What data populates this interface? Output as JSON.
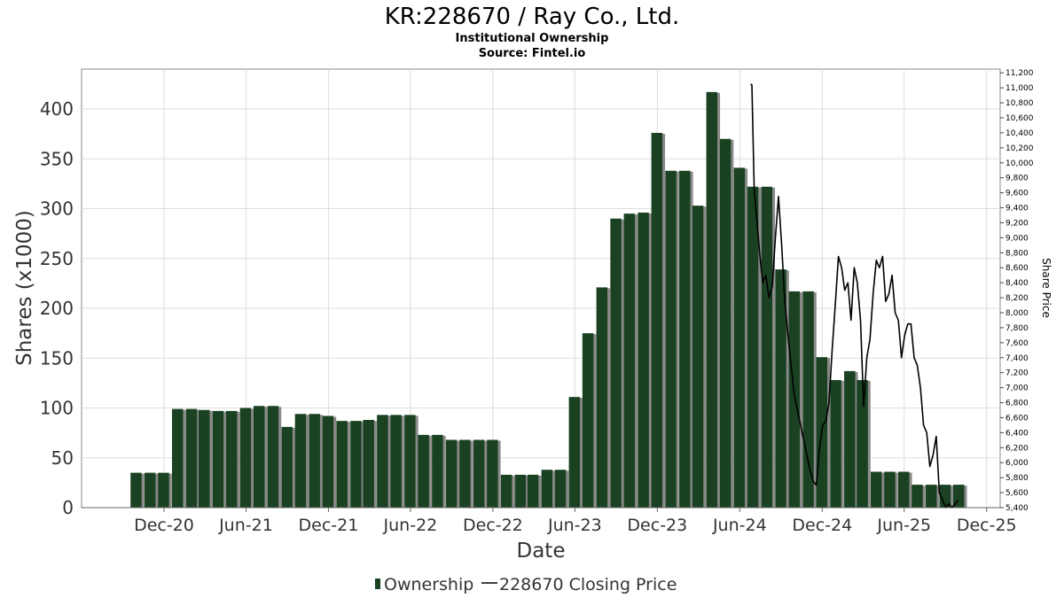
{
  "chart_data": {
    "type": "bar",
    "title": "KR:228670 / Ray Co., Ltd.",
    "subtitle": "Institutional Ownership",
    "source": "Source: Fintel.io",
    "xlabel": "Date",
    "ylabel": "Shares (x1000)",
    "y2label": "Share Price",
    "ylim": [
      0,
      440
    ],
    "y2lim": [
      5400,
      11250
    ],
    "yticks": [
      0,
      50,
      100,
      150,
      200,
      250,
      300,
      350,
      400
    ],
    "y2ticks": [
      5400,
      5600,
      5800,
      6000,
      6200,
      6400,
      6600,
      6800,
      7000,
      7200,
      7400,
      7600,
      7800,
      8000,
      8200,
      8400,
      8600,
      8800,
      9000,
      9200,
      9400,
      9600,
      9800,
      10000,
      10200,
      10400,
      10600,
      10800,
      11000,
      11200
    ],
    "y2tick_labels": [
      "5,400",
      "5,600",
      "5,800",
      "6,000",
      "6,200",
      "6,400",
      "6,600",
      "6,800",
      "7,000",
      "7,200",
      "7,400",
      "7,600",
      "7,800",
      "8,000",
      "8,200",
      "8,400",
      "8,600",
      "8,800",
      "9,000",
      "9,200",
      "9,400",
      "9,600",
      "9,800",
      "10,000",
      "10,200",
      "10,400",
      "10,600",
      "10,800",
      "11,000",
      "11,200"
    ],
    "xlim": [
      "2020-06-01",
      "2025-12-31"
    ],
    "xticks": [
      {
        "label": "Dec-20",
        "date": "2020-12-01"
      },
      {
        "label": "Jun-21",
        "date": "2021-06-01"
      },
      {
        "label": "Dec-21",
        "date": "2021-12-01"
      },
      {
        "label": "Jun-22",
        "date": "2022-06-01"
      },
      {
        "label": "Dec-22",
        "date": "2022-12-01"
      },
      {
        "label": "Jun-23",
        "date": "2023-06-01"
      },
      {
        "label": "Dec-23",
        "date": "2023-12-01"
      },
      {
        "label": "Jun-24",
        "date": "2024-06-01"
      },
      {
        "label": "Dec-24",
        "date": "2024-12-01"
      },
      {
        "label": "Jun-25",
        "date": "2025-06-01"
      },
      {
        "label": "Dec-25",
        "date": "2025-12-01"
      }
    ],
    "grid": true,
    "legend_position": "bottom",
    "series": [
      {
        "name": "Ownership",
        "type": "bar",
        "color": "#1a4222",
        "shadow_color": "#8a8a8a",
        "x": [
          "2020-09-30",
          "2020-10-31",
          "2020-11-30",
          "2020-12-31",
          "2021-01-31",
          "2021-02-28",
          "2021-03-31",
          "2021-04-30",
          "2021-05-31",
          "2021-06-30",
          "2021-07-31",
          "2021-08-31",
          "2021-09-30",
          "2021-10-31",
          "2021-11-30",
          "2021-12-31",
          "2022-01-31",
          "2022-02-28",
          "2022-03-31",
          "2022-04-30",
          "2022-05-31",
          "2022-06-30",
          "2022-07-31",
          "2022-08-31",
          "2022-09-30",
          "2022-10-31",
          "2022-11-30",
          "2022-12-31",
          "2023-01-31",
          "2023-02-28",
          "2023-03-31",
          "2023-04-30",
          "2023-05-31",
          "2023-06-30",
          "2023-07-31",
          "2023-08-31",
          "2023-09-30",
          "2023-10-31",
          "2023-11-30",
          "2023-12-31",
          "2024-01-31",
          "2024-02-29",
          "2024-03-31",
          "2024-04-30",
          "2024-05-31",
          "2024-06-30",
          "2024-07-31",
          "2024-08-31",
          "2024-09-30",
          "2024-10-31",
          "2024-11-30",
          "2024-12-31",
          "2025-01-31",
          "2025-02-28",
          "2025-03-31",
          "2025-04-30",
          "2025-05-31",
          "2025-06-30",
          "2025-07-31",
          "2025-08-31",
          "2025-09-30"
        ],
        "values": [
          35,
          35,
          35,
          99,
          99,
          98,
          97,
          97,
          100,
          102,
          102,
          81,
          94,
          94,
          92,
          87,
          87,
          88,
          93,
          93,
          93,
          73,
          73,
          68,
          68,
          68,
          68,
          33,
          33,
          33,
          38,
          38,
          111,
          175,
          221,
          290,
          295,
          296,
          376,
          338,
          338,
          303,
          417,
          370,
          341,
          322,
          322,
          239,
          217,
          217,
          151,
          128,
          137,
          128,
          36,
          36,
          36,
          23,
          23,
          23,
          23
        ]
      },
      {
        "name": "228670 Closing Price",
        "type": "line",
        "color": "#000000",
        "x": [
          "2024-06-25",
          "2024-06-28",
          "2024-07-03",
          "2024-07-08",
          "2024-07-15",
          "2024-07-22",
          "2024-07-29",
          "2024-08-05",
          "2024-08-12",
          "2024-08-19",
          "2024-08-26",
          "2024-09-02",
          "2024-09-09",
          "2024-09-16",
          "2024-09-23",
          "2024-09-30",
          "2024-10-07",
          "2024-10-14",
          "2024-10-21",
          "2024-10-28",
          "2024-11-04",
          "2024-11-11",
          "2024-11-18",
          "2024-11-25",
          "2024-12-02",
          "2024-12-09",
          "2024-12-16",
          "2024-12-23",
          "2024-12-30",
          "2025-01-06",
          "2025-01-13",
          "2025-01-20",
          "2025-01-27",
          "2025-02-03",
          "2025-02-10",
          "2025-02-17",
          "2025-02-24",
          "2025-03-03",
          "2025-03-10",
          "2025-03-17",
          "2025-03-24",
          "2025-03-31",
          "2025-04-07",
          "2025-04-14",
          "2025-04-21",
          "2025-04-28",
          "2025-05-05",
          "2025-05-12",
          "2025-05-19",
          "2025-05-26",
          "2025-06-02",
          "2025-06-09",
          "2025-06-16",
          "2025-06-23",
          "2025-06-30",
          "2025-07-07",
          "2025-07-14",
          "2025-07-21",
          "2025-07-28",
          "2025-08-04",
          "2025-08-11",
          "2025-08-18",
          "2025-08-25",
          "2025-09-01",
          "2025-09-08",
          "2025-09-15",
          "2025-09-22",
          "2025-09-29"
        ],
        "values": [
          11050,
          11040,
          9650,
          9300,
          8800,
          8400,
          8500,
          8200,
          8350,
          9000,
          9550,
          8900,
          8150,
          7700,
          7300,
          6900,
          6700,
          6500,
          6300,
          6100,
          5900,
          5750,
          5700,
          6200,
          6500,
          6550,
          6800,
          7500,
          8100,
          8750,
          8600,
          8300,
          8400,
          7900,
          8600,
          8400,
          7900,
          6750,
          7400,
          7650,
          8250,
          8700,
          8600,
          8750,
          8150,
          8250,
          8500,
          8000,
          7900,
          7400,
          7700,
          7850,
          7850,
          7400,
          7300,
          7000,
          6500,
          6400,
          5950,
          6100,
          6350,
          5600,
          5500,
          5400,
          5450,
          5400,
          5450,
          5500
        ]
      }
    ]
  },
  "legend": {
    "entries": [
      {
        "label": "Ownership",
        "color": "#1a4222"
      },
      {
        "label": "228670 Closing Price",
        "color": "#000000"
      }
    ]
  }
}
